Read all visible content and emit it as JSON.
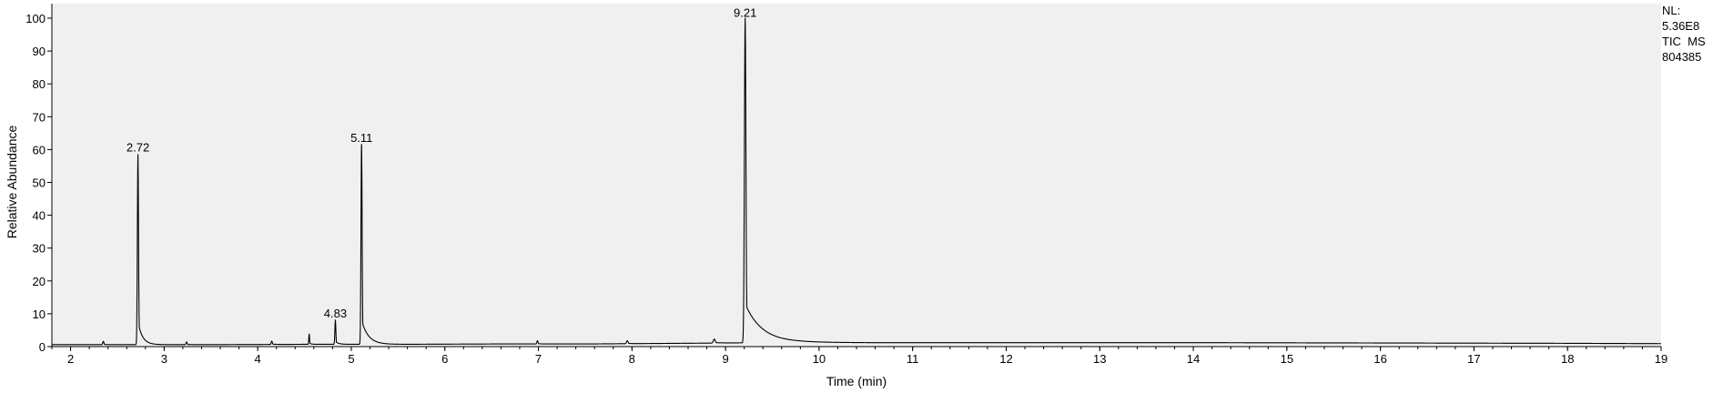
{
  "chart_data": {
    "type": "line",
    "xlabel": "Time (min)",
    "ylabel": "Relative Abundance",
    "xlim": [
      1.8,
      19.0
    ],
    "ylim": [
      0,
      100
    ],
    "x_ticks": [
      2,
      3,
      4,
      5,
      6,
      7,
      8,
      9,
      10,
      11,
      12,
      13,
      14,
      15,
      16,
      17,
      18,
      19
    ],
    "y_ticks": [
      0,
      10,
      20,
      30,
      40,
      50,
      60,
      70,
      80,
      90,
      100
    ],
    "grid": false,
    "line_color": "#000000",
    "plot_background": "#f0f0f0",
    "baseline": [
      [
        1.8,
        0.6
      ],
      [
        2.5,
        0.6
      ],
      [
        3.5,
        0.6
      ],
      [
        4.5,
        0.7
      ],
      [
        5.5,
        0.7
      ],
      [
        6.5,
        0.8
      ],
      [
        7.5,
        0.8
      ],
      [
        8.0,
        0.9
      ],
      [
        8.5,
        1.0
      ],
      [
        9.0,
        1.1
      ],
      [
        9.8,
        1.3
      ],
      [
        10.5,
        1.2
      ],
      [
        12.0,
        1.2
      ],
      [
        14.0,
        1.2
      ],
      [
        16.0,
        1.1
      ],
      [
        18.0,
        1.0
      ],
      [
        19.0,
        0.9
      ]
    ],
    "peaks": [
      {
        "x": 2.35,
        "height": 1.0,
        "sigma": 0.006,
        "tail": 0.006
      },
      {
        "x": 2.72,
        "height": 58,
        "sigma": 0.006,
        "tail": 0.012,
        "label": "2.72"
      },
      {
        "x": 3.24,
        "height": 0.8,
        "sigma": 0.006,
        "tail": 0.008
      },
      {
        "x": 4.15,
        "height": 1.0,
        "sigma": 0.006,
        "tail": 0.008
      },
      {
        "x": 4.55,
        "height": 3.2,
        "sigma": 0.004,
        "tail": 0.005
      },
      {
        "x": 4.83,
        "height": 7.5,
        "sigma": 0.005,
        "tail": 0.008,
        "label": "4.83"
      },
      {
        "x": 5.11,
        "height": 61,
        "sigma": 0.006,
        "tail": 0.018,
        "label": "5.11"
      },
      {
        "x": 6.99,
        "height": 1.0,
        "sigma": 0.006,
        "tail": 0.008
      },
      {
        "x": 7.95,
        "height": 0.9,
        "sigma": 0.008,
        "tail": 0.01
      },
      {
        "x": 8.88,
        "height": 1.2,
        "sigma": 0.01,
        "tail": 0.02
      },
      {
        "x": 9.21,
        "height": 99,
        "sigma": 0.008,
        "tail": 0.045,
        "label": "9.21"
      }
    ]
  },
  "info": {
    "nl_label": "NL:",
    "nl_value": "5.36E8",
    "trace": "TIC  MS",
    "sample": "804385"
  }
}
